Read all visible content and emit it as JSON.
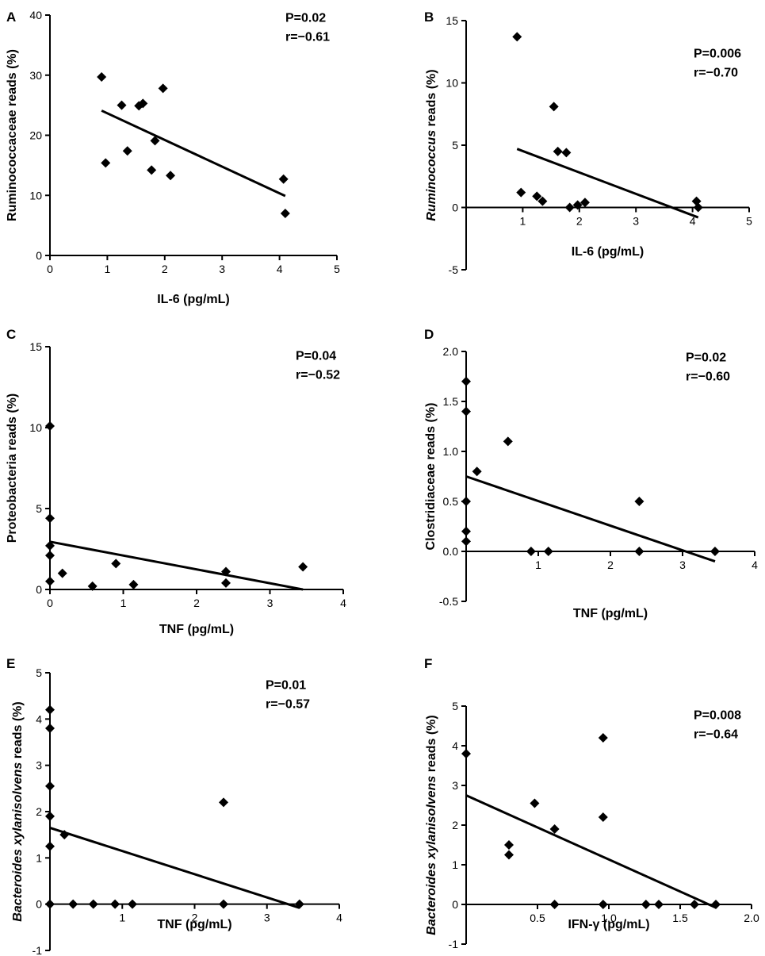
{
  "chart_data": [
    {
      "type": "scatter",
      "panel": "A",
      "xlabel": "IL-6 (pg/mL)",
      "ylabel": "Ruminococcaceae reads (%)",
      "ylabel_italic_part": "",
      "xlim": [
        0,
        5
      ],
      "ylim": [
        0,
        40
      ],
      "xticks": [
        0,
        1,
        2,
        3,
        4,
        5
      ],
      "xtick_labels": [
        "0",
        "1",
        "2",
        "3",
        "4",
        "5"
      ],
      "yticks": [
        0,
        10,
        20,
        30,
        40
      ],
      "ytick_labels": [
        "0",
        "10",
        "20",
        "30",
        "40"
      ],
      "p_value": "P=0.02",
      "r_value": "r=−0.61",
      "points": [
        [
          0.9,
          29.7
        ],
        [
          0.97,
          15.4
        ],
        [
          1.25,
          25
        ],
        [
          1.35,
          17.4
        ],
        [
          1.55,
          24.9
        ],
        [
          1.62,
          25.3
        ],
        [
          1.77,
          14.2
        ],
        [
          1.83,
          19.1
        ],
        [
          1.97,
          27.8
        ],
        [
          2.1,
          13.3
        ],
        [
          4.07,
          12.7
        ],
        [
          4.1,
          7.0
        ]
      ],
      "regression": [
        [
          0.9,
          24.1
        ],
        [
          4.1,
          9.9
        ]
      ]
    },
    {
      "type": "scatter",
      "panel": "B",
      "xlabel": "IL-6 (pg/mL)",
      "ylabel": " reads (%)",
      "ylabel_italic_part": "Ruminococcus",
      "xlim": [
        0,
        5
      ],
      "ylim": [
        -5,
        15
      ],
      "xticks": [
        1,
        2,
        3,
        4,
        5
      ],
      "xtick_labels": [
        "1",
        "2",
        "3",
        "4",
        "5"
      ],
      "yticks": [
        -5,
        0,
        5,
        10,
        15
      ],
      "ytick_labels": [
        "-5",
        "0",
        "5",
        "10",
        "15"
      ],
      "p_value": "P=0.006",
      "r_value": "r=−0.70",
      "points": [
        [
          0.9,
          13.7
        ],
        [
          0.97,
          1.2
        ],
        [
          1.25,
          0.9
        ],
        [
          1.35,
          0.5
        ],
        [
          1.55,
          8.1
        ],
        [
          1.62,
          4.5
        ],
        [
          1.77,
          4.4
        ],
        [
          1.83,
          0.0
        ],
        [
          1.97,
          0.2
        ],
        [
          2.1,
          0.4
        ],
        [
          4.07,
          0.5
        ],
        [
          4.1,
          0.0
        ]
      ],
      "regression": [
        [
          0.9,
          4.7
        ],
        [
          4.1,
          -0.8
        ]
      ]
    },
    {
      "type": "scatter",
      "panel": "C",
      "xlabel": "TNF (pg/mL)",
      "ylabel": "Proteobacteria reads (%)",
      "ylabel_italic_part": "",
      "xlim": [
        0,
        4
      ],
      "ylim": [
        0,
        15
      ],
      "xticks": [
        0,
        1,
        2,
        3,
        4
      ],
      "xtick_labels": [
        "0",
        "1",
        "2",
        "3",
        "4"
      ],
      "yticks": [
        0,
        5,
        10,
        15
      ],
      "ytick_labels": [
        "0",
        "5",
        "10",
        "15"
      ],
      "p_value": "P=0.04",
      "r_value": "r=−0.52",
      "points": [
        [
          0.0,
          10.1
        ],
        [
          0.0,
          4.4
        ],
        [
          0.0,
          2.7
        ],
        [
          0.0,
          2.1
        ],
        [
          0.0,
          0.5
        ],
        [
          0.17,
          1.0
        ],
        [
          0.58,
          0.2
        ],
        [
          0.9,
          1.6
        ],
        [
          1.14,
          0.3
        ],
        [
          2.4,
          1.1
        ],
        [
          2.4,
          0.4
        ],
        [
          3.45,
          1.4
        ]
      ],
      "regression": [
        [
          0.0,
          2.95
        ],
        [
          3.45,
          0.0
        ]
      ]
    },
    {
      "type": "scatter",
      "panel": "D",
      "xlabel": "TNF (pg/mL)",
      "ylabel": "Clostridiaceae reads (%)",
      "ylabel_italic_part": "",
      "xlim": [
        0,
        4
      ],
      "ylim": [
        -0.5,
        2.0
      ],
      "xticks": [
        1,
        2,
        3,
        4
      ],
      "xtick_labels": [
        "1",
        "2",
        "3",
        "4"
      ],
      "yticks": [
        -0.5,
        0.0,
        0.5,
        1.0,
        1.5,
        2.0
      ],
      "ytick_labels": [
        "-0.5",
        "0.0",
        "0.5",
        "1.0",
        "1.5",
        "2.0"
      ],
      "p_value": "P=0.02",
      "r_value": "r=−0.60",
      "points": [
        [
          0.0,
          1.7
        ],
        [
          0.0,
          1.4
        ],
        [
          0.0,
          0.5
        ],
        [
          0.0,
          0.2
        ],
        [
          0.0,
          0.1
        ],
        [
          0.15,
          0.8
        ],
        [
          0.58,
          1.1
        ],
        [
          0.9,
          0.0
        ],
        [
          1.14,
          0.0
        ],
        [
          2.4,
          0.5
        ],
        [
          2.4,
          0.0
        ],
        [
          3.45,
          0.0
        ]
      ],
      "regression": [
        [
          0.0,
          0.75
        ],
        [
          3.45,
          -0.1
        ]
      ]
    },
    {
      "type": "scatter",
      "panel": "E",
      "xlabel": "TNF (pg/mL)",
      "ylabel": " reads (%)",
      "ylabel_italic_part": "Bacteroides  xylanisolvens",
      "xlim": [
        0,
        4
      ],
      "ylim": [
        -1,
        5
      ],
      "xticks": [
        1,
        2,
        3,
        4
      ],
      "xtick_labels": [
        "1",
        "2",
        "3",
        "4"
      ],
      "yticks": [
        -1,
        0,
        1,
        2,
        3,
        4,
        5
      ],
      "ytick_labels": [
        "-1",
        "0",
        "1",
        "2",
        "3",
        "4",
        "5"
      ],
      "p_value": "P=0.01",
      "r_value": "r=−0.57",
      "points": [
        [
          0.0,
          4.2
        ],
        [
          0.0,
          3.8
        ],
        [
          0.0,
          2.55
        ],
        [
          0.0,
          1.9
        ],
        [
          0.0,
          1.25
        ],
        [
          0.0,
          0.0
        ],
        [
          0.2,
          1.5
        ],
        [
          0.32,
          0.0
        ],
        [
          0.6,
          0.0
        ],
        [
          0.9,
          0.0
        ],
        [
          1.14,
          0.0
        ],
        [
          2.4,
          2.2
        ],
        [
          2.4,
          0.0
        ],
        [
          3.45,
          0.0
        ]
      ],
      "regression": [
        [
          0.0,
          1.65
        ],
        [
          3.45,
          -0.08
        ]
      ]
    },
    {
      "type": "scatter",
      "panel": "F",
      "xlabel": "IFN-γ (pg/mL)",
      "ylabel": " reads (%)",
      "ylabel_italic_part": "Bacteroides xylanisolvens",
      "xlim": [
        0,
        2.0
      ],
      "ylim": [
        -1,
        5
      ],
      "xticks": [
        0.5,
        1.0,
        1.5,
        2.0
      ],
      "xtick_labels": [
        "0.5",
        "1.0",
        "1.5",
        "2.0"
      ],
      "yticks": [
        -1,
        0,
        1,
        2,
        3,
        4,
        5
      ],
      "ytick_labels": [
        "-1",
        "0",
        "1",
        "2",
        "3",
        "4",
        "5"
      ],
      "p_value": "P=0.008",
      "r_value": "r=−0.64",
      "points": [
        [
          0.0,
          3.8
        ],
        [
          0.3,
          1.5
        ],
        [
          0.3,
          1.25
        ],
        [
          0.48,
          2.55
        ],
        [
          0.62,
          1.9
        ],
        [
          0.62,
          0.0
        ],
        [
          0.96,
          4.2
        ],
        [
          0.96,
          2.2
        ],
        [
          0.96,
          0.0
        ],
        [
          1.26,
          0.0
        ],
        [
          1.35,
          0.0
        ],
        [
          1.6,
          0.0
        ],
        [
          1.75,
          0.0
        ]
      ],
      "regression": [
        [
          0.0,
          2.75
        ],
        [
          1.75,
          -0.08
        ]
      ]
    }
  ]
}
